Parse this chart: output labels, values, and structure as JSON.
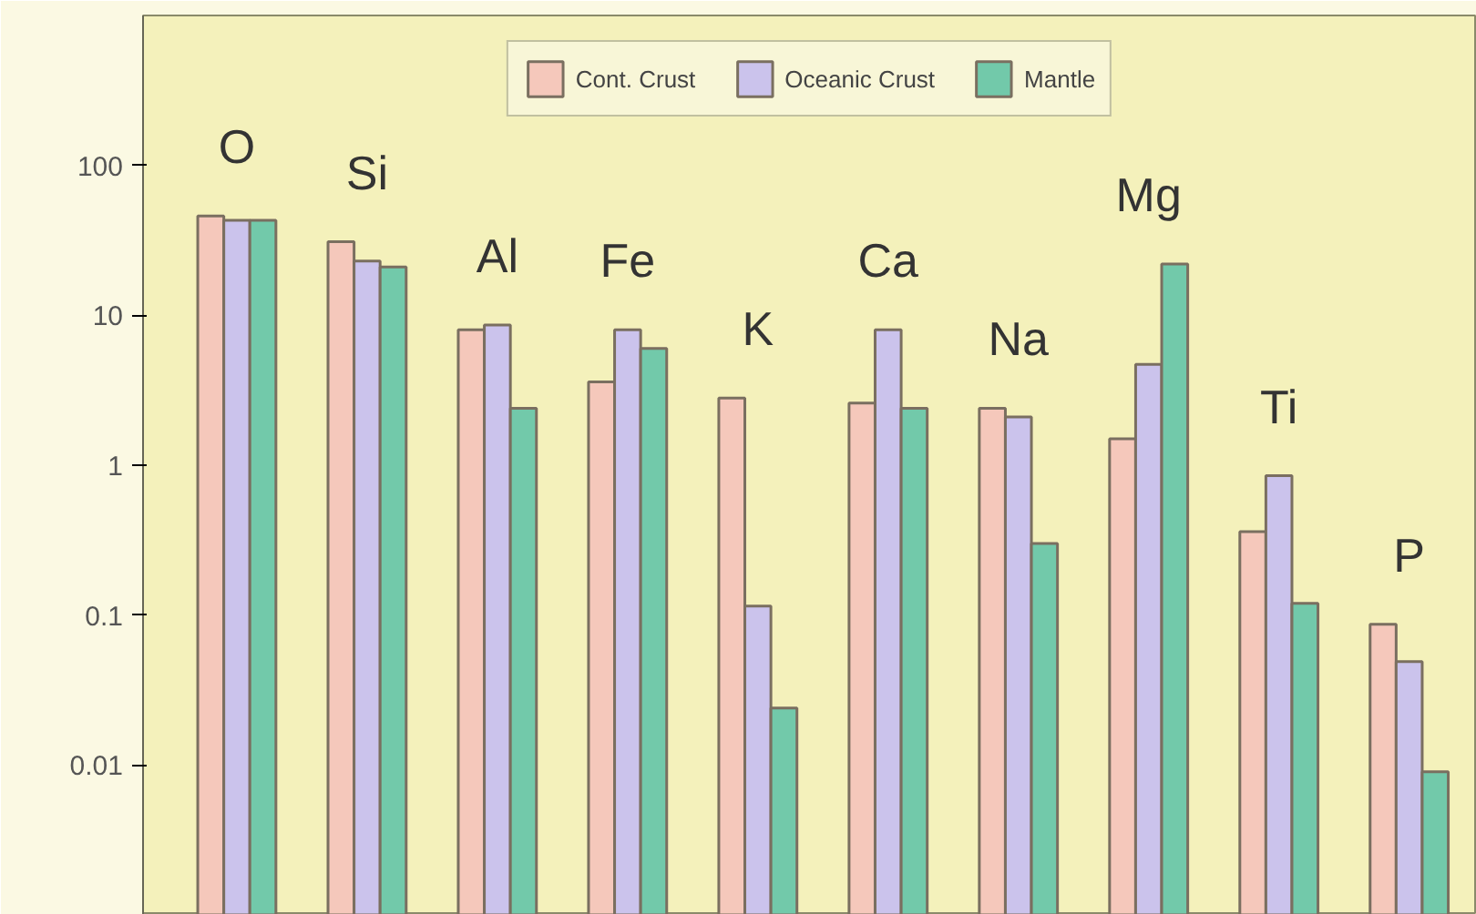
{
  "chart_data": {
    "type": "bar",
    "categories": [
      "O",
      "Si",
      "Al",
      "Fe",
      "K",
      "Ca",
      "Na",
      "Mg",
      "Ti",
      "P"
    ],
    "series": [
      {
        "name": "Cont. Crust",
        "color": "#f5c8bb",
        "values": [
          46,
          31,
          8,
          3.6,
          2.8,
          2.6,
          2.4,
          1.5,
          0.36,
          0.087
        ]
      },
      {
        "name": "Oceanic Crust",
        "color": "#cbc3ec",
        "values": [
          43,
          23,
          8.6,
          8,
          0.115,
          8,
          2.1,
          4.7,
          0.85,
          0.049
        ]
      },
      {
        "name": "Mantle",
        "color": "#72c9aa",
        "values": [
          43,
          21,
          2.4,
          6,
          0.024,
          2.4,
          0.3,
          22,
          0.12,
          0.009
        ]
      }
    ],
    "log": true,
    "ylim": [
      0.001,
      1000
    ],
    "yticks": [
      0.01,
      0.1,
      1,
      10,
      100
    ],
    "grid": false,
    "legend": "top"
  }
}
